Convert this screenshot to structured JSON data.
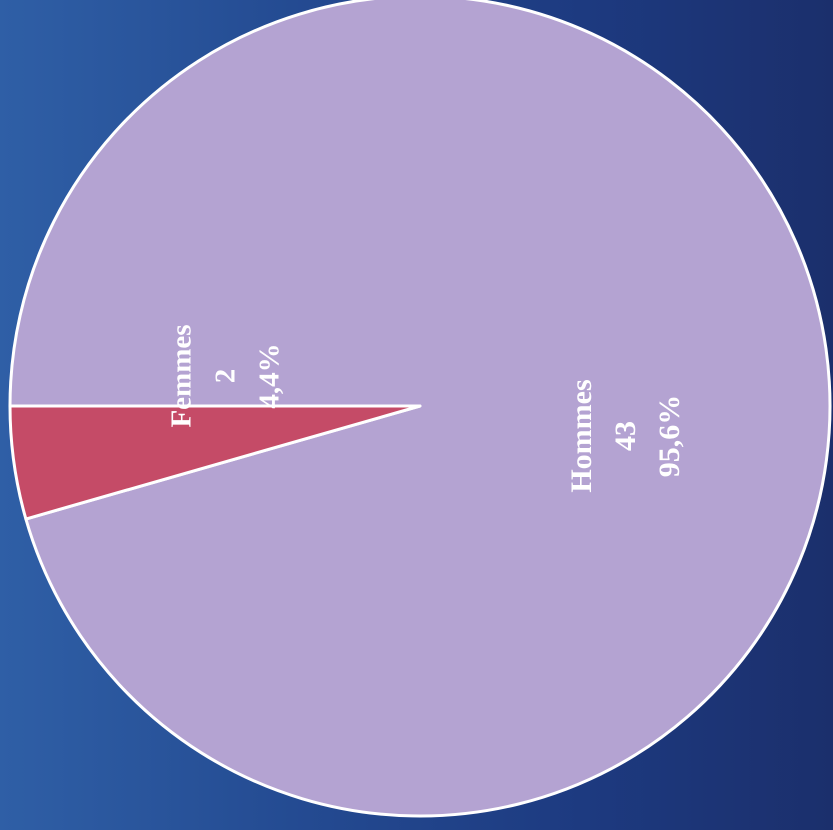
{
  "chart_data": {
    "type": "pie",
    "title": "",
    "categories": [
      "Hommes",
      "Femmes"
    ],
    "values": [
      43,
      2
    ],
    "percent_labels": [
      "95,6%",
      "4,4%"
    ],
    "value_labels": [
      "43",
      "2"
    ],
    "colors": [
      "#b4a3d2",
      "#c54b67"
    ],
    "edge_color": "#ffffff",
    "rotation": "rotated 90 degrees (labels read bottom-to-top)",
    "legend": "none"
  }
}
